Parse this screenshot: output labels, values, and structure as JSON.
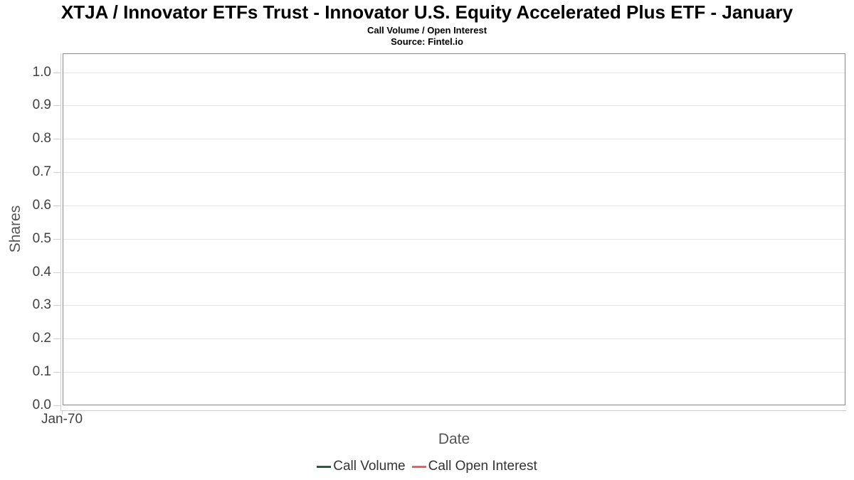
{
  "chart_data": {
    "type": "line",
    "title": "XTJA / Innovator ETFs Trust - Innovator U.S. Equity Accelerated Plus ETF - January",
    "subtitle": "Call Volume / Open Interest",
    "source": "Source: Fintel.io",
    "xlabel": "Date",
    "ylabel": "Shares",
    "x_ticks": [
      "Jan-70"
    ],
    "y_ticks": [
      "0.0",
      "0.1",
      "0.2",
      "0.3",
      "0.4",
      "0.5",
      "0.6",
      "0.7",
      "0.8",
      "0.9",
      "1.0"
    ],
    "ylim": [
      0.0,
      1.0
    ],
    "grid": "horizontal",
    "legend_position": "bottom",
    "series": [
      {
        "name": "Call Volume",
        "color": "#275d3b",
        "x": [],
        "values": []
      },
      {
        "name": "Call Open Interest",
        "color": "#f45b5b",
        "x": [],
        "values": []
      }
    ]
  },
  "colors": {
    "background": "#ffffff",
    "plot_border": "#8a8a8a",
    "gridline": "#e6e6e6",
    "axis_line": "#cfcfcf",
    "tick_label_text": "#404040",
    "axis_title_text": "#555555",
    "legend_text": "#333333",
    "title_text": "#000000"
  }
}
